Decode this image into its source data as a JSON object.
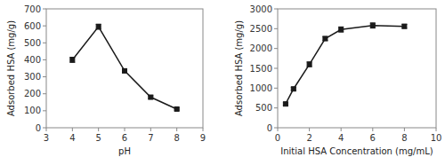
{
  "chart_data": [
    {
      "type": "line",
      "x": [
        4,
        5,
        6,
        7,
        8
      ],
      "values": [
        400,
        595,
        335,
        180,
        110
      ],
      "errors": [
        15,
        15,
        10,
        8,
        6
      ],
      "xlabel": "pH",
      "ylabel": "Adsorbed HSA (mg/g)",
      "xlim": [
        3,
        9
      ],
      "ylim": [
        0,
        700
      ],
      "xticks": [
        3,
        4,
        5,
        6,
        7,
        8,
        9
      ],
      "yticks": [
        0,
        100,
        200,
        300,
        400,
        500,
        600,
        700
      ],
      "color": "#1a1a1a",
      "marker": "square"
    },
    {
      "type": "line",
      "x": [
        0.5,
        1,
        2,
        3,
        4,
        6,
        8
      ],
      "values": [
        600,
        980,
        1600,
        2250,
        2480,
        2580,
        2560
      ],
      "errors": [
        30,
        35,
        60,
        50,
        65,
        65,
        50
      ],
      "xlabel": "Initial HSA Concentration (mg/mL)",
      "ylabel": "Adsorbed HSA (mg/g)",
      "xlim": [
        0,
        10
      ],
      "ylim": [
        0,
        3000
      ],
      "xticks": [
        0,
        2,
        4,
        6,
        8,
        10
      ],
      "yticks": [
        0,
        500,
        1000,
        1500,
        2000,
        2500,
        3000
      ],
      "color": "#1a1a1a",
      "marker": "square"
    }
  ]
}
